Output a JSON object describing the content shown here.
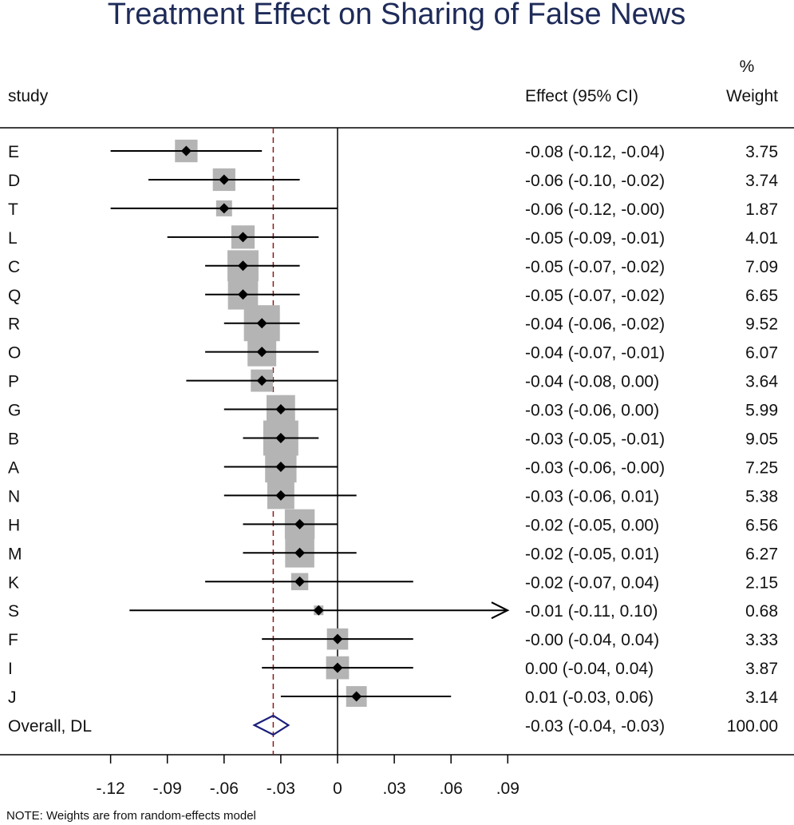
{
  "chart_data": {
    "type": "forest",
    "title": "Treatment Effect on Sharing of False News",
    "headers": {
      "study": "study",
      "effect": "Effect (95% CI)",
      "weight_top": "%",
      "weight": "Weight"
    },
    "studies": [
      {
        "label": "E",
        "effect": -0.08,
        "lo": -0.12,
        "hi": -0.04,
        "text": "-0.08 (-0.12, -0.04)",
        "weight": "3.75"
      },
      {
        "label": "D",
        "effect": -0.06,
        "lo": -0.1,
        "hi": -0.02,
        "text": "-0.06 (-0.10, -0.02)",
        "weight": "3.74"
      },
      {
        "label": "T",
        "effect": -0.06,
        "lo": -0.12,
        "hi": -0.0,
        "text": "-0.06 (-0.12, -0.00)",
        "weight": "1.87"
      },
      {
        "label": "L",
        "effect": -0.05,
        "lo": -0.09,
        "hi": -0.01,
        "text": "-0.05 (-0.09, -0.01)",
        "weight": "4.01"
      },
      {
        "label": "C",
        "effect": -0.05,
        "lo": -0.07,
        "hi": -0.02,
        "text": "-0.05 (-0.07, -0.02)",
        "weight": "7.09"
      },
      {
        "label": "Q",
        "effect": -0.05,
        "lo": -0.07,
        "hi": -0.02,
        "text": "-0.05 (-0.07, -0.02)",
        "weight": "6.65"
      },
      {
        "label": "R",
        "effect": -0.04,
        "lo": -0.06,
        "hi": -0.02,
        "text": "-0.04 (-0.06, -0.02)",
        "weight": "9.52"
      },
      {
        "label": "O",
        "effect": -0.04,
        "lo": -0.07,
        "hi": -0.01,
        "text": "-0.04 (-0.07, -0.01)",
        "weight": "6.07"
      },
      {
        "label": "P",
        "effect": -0.04,
        "lo": -0.08,
        "hi": 0.0,
        "text": "-0.04 (-0.08, 0.00)",
        "weight": "3.64"
      },
      {
        "label": "G",
        "effect": -0.03,
        "lo": -0.06,
        "hi": 0.0,
        "text": "-0.03 (-0.06, 0.00)",
        "weight": "5.99"
      },
      {
        "label": "B",
        "effect": -0.03,
        "lo": -0.05,
        "hi": -0.01,
        "text": "-0.03 (-0.05, -0.01)",
        "weight": "9.05"
      },
      {
        "label": "A",
        "effect": -0.03,
        "lo": -0.06,
        "hi": -0.0,
        "text": "-0.03 (-0.06, -0.00)",
        "weight": "7.25"
      },
      {
        "label": "N",
        "effect": -0.03,
        "lo": -0.06,
        "hi": 0.01,
        "text": "-0.03 (-0.06, 0.01)",
        "weight": "5.38"
      },
      {
        "label": "H",
        "effect": -0.02,
        "lo": -0.05,
        "hi": 0.0,
        "text": "-0.02 (-0.05, 0.00)",
        "weight": "6.56"
      },
      {
        "label": "M",
        "effect": -0.02,
        "lo": -0.05,
        "hi": 0.01,
        "text": "-0.02 (-0.05, 0.01)",
        "weight": "6.27"
      },
      {
        "label": "K",
        "effect": -0.02,
        "lo": -0.07,
        "hi": 0.04,
        "text": "-0.02 (-0.07, 0.04)",
        "weight": "2.15"
      },
      {
        "label": "S",
        "effect": -0.01,
        "lo": -0.11,
        "hi": 0.1,
        "text": "-0.01 (-0.11, 0.10)",
        "weight": "0.68"
      },
      {
        "label": "F",
        "effect": -0.0,
        "lo": -0.04,
        "hi": 0.04,
        "text": "-0.00 (-0.04, 0.04)",
        "weight": "3.33"
      },
      {
        "label": "I",
        "effect": 0.0,
        "lo": -0.04,
        "hi": 0.04,
        "text": "0.00 (-0.04, 0.04)",
        "weight": "3.87"
      },
      {
        "label": "J",
        "effect": 0.01,
        "lo": -0.03,
        "hi": 0.06,
        "text": "0.01 (-0.03, 0.06)",
        "weight": "3.14"
      }
    ],
    "overall": {
      "label": "Overall, DL",
      "effect": -0.034,
      "lo": -0.04,
      "hi": -0.03,
      "text": "-0.03 (-0.04, -0.03)",
      "weight": "100.00"
    },
    "xticks": [
      -0.12,
      -0.09,
      -0.06,
      -0.03,
      0,
      0.03,
      0.06,
      0.09
    ],
    "xtick_labels": [
      "-.12",
      "-.09",
      "-.06",
      "-.03",
      "0",
      ".03",
      ".06",
      ".09"
    ],
    "x_display_range": [
      -0.12,
      0.09
    ],
    "note": "NOTE: Weights are from random-effects model",
    "colors": {
      "title": "#1e2b59",
      "box": "#b4b4b4",
      "marker": "#000000",
      "overall_diamond": "#1a1f7a",
      "overall_line": "#8b1a1a"
    }
  }
}
